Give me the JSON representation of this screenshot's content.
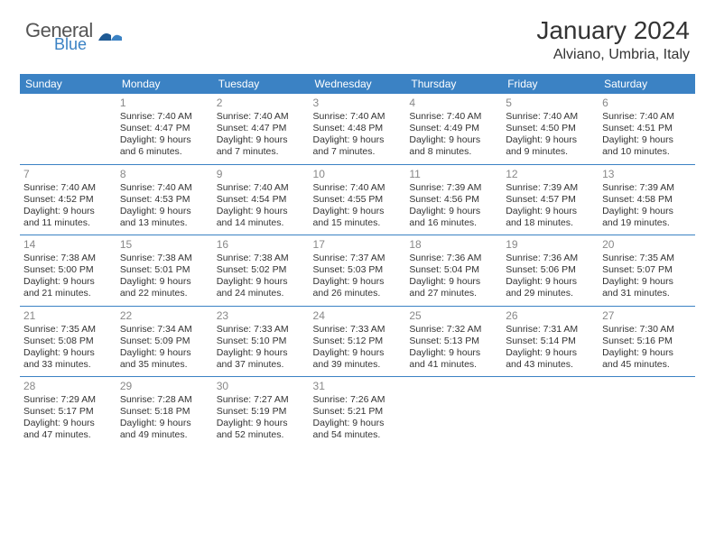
{
  "logo": {
    "general": "General",
    "blue": "Blue"
  },
  "title": "January 2024",
  "location": "Alviano, Umbria, Italy",
  "colors": {
    "header_bg": "#3b82c4",
    "header_text": "#ffffff",
    "border": "#3b82c4",
    "daynum": "#888888",
    "body_text": "#333333",
    "background": "#ffffff"
  },
  "typography": {
    "title_fontsize": 28,
    "location_fontsize": 16,
    "header_fontsize": 12,
    "cell_fontsize": 10.5,
    "daynum_fontsize": 12
  },
  "weekdays": [
    "Sunday",
    "Monday",
    "Tuesday",
    "Wednesday",
    "Thursday",
    "Friday",
    "Saturday"
  ],
  "weeks": [
    [
      null,
      {
        "n": "1",
        "sr": "Sunrise: 7:40 AM",
        "ss": "Sunset: 4:47 PM",
        "dl1": "Daylight: 9 hours",
        "dl2": "and 6 minutes."
      },
      {
        "n": "2",
        "sr": "Sunrise: 7:40 AM",
        "ss": "Sunset: 4:47 PM",
        "dl1": "Daylight: 9 hours",
        "dl2": "and 7 minutes."
      },
      {
        "n": "3",
        "sr": "Sunrise: 7:40 AM",
        "ss": "Sunset: 4:48 PM",
        "dl1": "Daylight: 9 hours",
        "dl2": "and 7 minutes."
      },
      {
        "n": "4",
        "sr": "Sunrise: 7:40 AM",
        "ss": "Sunset: 4:49 PM",
        "dl1": "Daylight: 9 hours",
        "dl2": "and 8 minutes."
      },
      {
        "n": "5",
        "sr": "Sunrise: 7:40 AM",
        "ss": "Sunset: 4:50 PM",
        "dl1": "Daylight: 9 hours",
        "dl2": "and 9 minutes."
      },
      {
        "n": "6",
        "sr": "Sunrise: 7:40 AM",
        "ss": "Sunset: 4:51 PM",
        "dl1": "Daylight: 9 hours",
        "dl2": "and 10 minutes."
      }
    ],
    [
      {
        "n": "7",
        "sr": "Sunrise: 7:40 AM",
        "ss": "Sunset: 4:52 PM",
        "dl1": "Daylight: 9 hours",
        "dl2": "and 11 minutes."
      },
      {
        "n": "8",
        "sr": "Sunrise: 7:40 AM",
        "ss": "Sunset: 4:53 PM",
        "dl1": "Daylight: 9 hours",
        "dl2": "and 13 minutes."
      },
      {
        "n": "9",
        "sr": "Sunrise: 7:40 AM",
        "ss": "Sunset: 4:54 PM",
        "dl1": "Daylight: 9 hours",
        "dl2": "and 14 minutes."
      },
      {
        "n": "10",
        "sr": "Sunrise: 7:40 AM",
        "ss": "Sunset: 4:55 PM",
        "dl1": "Daylight: 9 hours",
        "dl2": "and 15 minutes."
      },
      {
        "n": "11",
        "sr": "Sunrise: 7:39 AM",
        "ss": "Sunset: 4:56 PM",
        "dl1": "Daylight: 9 hours",
        "dl2": "and 16 minutes."
      },
      {
        "n": "12",
        "sr": "Sunrise: 7:39 AM",
        "ss": "Sunset: 4:57 PM",
        "dl1": "Daylight: 9 hours",
        "dl2": "and 18 minutes."
      },
      {
        "n": "13",
        "sr": "Sunrise: 7:39 AM",
        "ss": "Sunset: 4:58 PM",
        "dl1": "Daylight: 9 hours",
        "dl2": "and 19 minutes."
      }
    ],
    [
      {
        "n": "14",
        "sr": "Sunrise: 7:38 AM",
        "ss": "Sunset: 5:00 PM",
        "dl1": "Daylight: 9 hours",
        "dl2": "and 21 minutes."
      },
      {
        "n": "15",
        "sr": "Sunrise: 7:38 AM",
        "ss": "Sunset: 5:01 PM",
        "dl1": "Daylight: 9 hours",
        "dl2": "and 22 minutes."
      },
      {
        "n": "16",
        "sr": "Sunrise: 7:38 AM",
        "ss": "Sunset: 5:02 PM",
        "dl1": "Daylight: 9 hours",
        "dl2": "and 24 minutes."
      },
      {
        "n": "17",
        "sr": "Sunrise: 7:37 AM",
        "ss": "Sunset: 5:03 PM",
        "dl1": "Daylight: 9 hours",
        "dl2": "and 26 minutes."
      },
      {
        "n": "18",
        "sr": "Sunrise: 7:36 AM",
        "ss": "Sunset: 5:04 PM",
        "dl1": "Daylight: 9 hours",
        "dl2": "and 27 minutes."
      },
      {
        "n": "19",
        "sr": "Sunrise: 7:36 AM",
        "ss": "Sunset: 5:06 PM",
        "dl1": "Daylight: 9 hours",
        "dl2": "and 29 minutes."
      },
      {
        "n": "20",
        "sr": "Sunrise: 7:35 AM",
        "ss": "Sunset: 5:07 PM",
        "dl1": "Daylight: 9 hours",
        "dl2": "and 31 minutes."
      }
    ],
    [
      {
        "n": "21",
        "sr": "Sunrise: 7:35 AM",
        "ss": "Sunset: 5:08 PM",
        "dl1": "Daylight: 9 hours",
        "dl2": "and 33 minutes."
      },
      {
        "n": "22",
        "sr": "Sunrise: 7:34 AM",
        "ss": "Sunset: 5:09 PM",
        "dl1": "Daylight: 9 hours",
        "dl2": "and 35 minutes."
      },
      {
        "n": "23",
        "sr": "Sunrise: 7:33 AM",
        "ss": "Sunset: 5:10 PM",
        "dl1": "Daylight: 9 hours",
        "dl2": "and 37 minutes."
      },
      {
        "n": "24",
        "sr": "Sunrise: 7:33 AM",
        "ss": "Sunset: 5:12 PM",
        "dl1": "Daylight: 9 hours",
        "dl2": "and 39 minutes."
      },
      {
        "n": "25",
        "sr": "Sunrise: 7:32 AM",
        "ss": "Sunset: 5:13 PM",
        "dl1": "Daylight: 9 hours",
        "dl2": "and 41 minutes."
      },
      {
        "n": "26",
        "sr": "Sunrise: 7:31 AM",
        "ss": "Sunset: 5:14 PM",
        "dl1": "Daylight: 9 hours",
        "dl2": "and 43 minutes."
      },
      {
        "n": "27",
        "sr": "Sunrise: 7:30 AM",
        "ss": "Sunset: 5:16 PM",
        "dl1": "Daylight: 9 hours",
        "dl2": "and 45 minutes."
      }
    ],
    [
      {
        "n": "28",
        "sr": "Sunrise: 7:29 AM",
        "ss": "Sunset: 5:17 PM",
        "dl1": "Daylight: 9 hours",
        "dl2": "and 47 minutes."
      },
      {
        "n": "29",
        "sr": "Sunrise: 7:28 AM",
        "ss": "Sunset: 5:18 PM",
        "dl1": "Daylight: 9 hours",
        "dl2": "and 49 minutes."
      },
      {
        "n": "30",
        "sr": "Sunrise: 7:27 AM",
        "ss": "Sunset: 5:19 PM",
        "dl1": "Daylight: 9 hours",
        "dl2": "and 52 minutes."
      },
      {
        "n": "31",
        "sr": "Sunrise: 7:26 AM",
        "ss": "Sunset: 5:21 PM",
        "dl1": "Daylight: 9 hours",
        "dl2": "and 54 minutes."
      },
      null,
      null,
      null
    ]
  ]
}
